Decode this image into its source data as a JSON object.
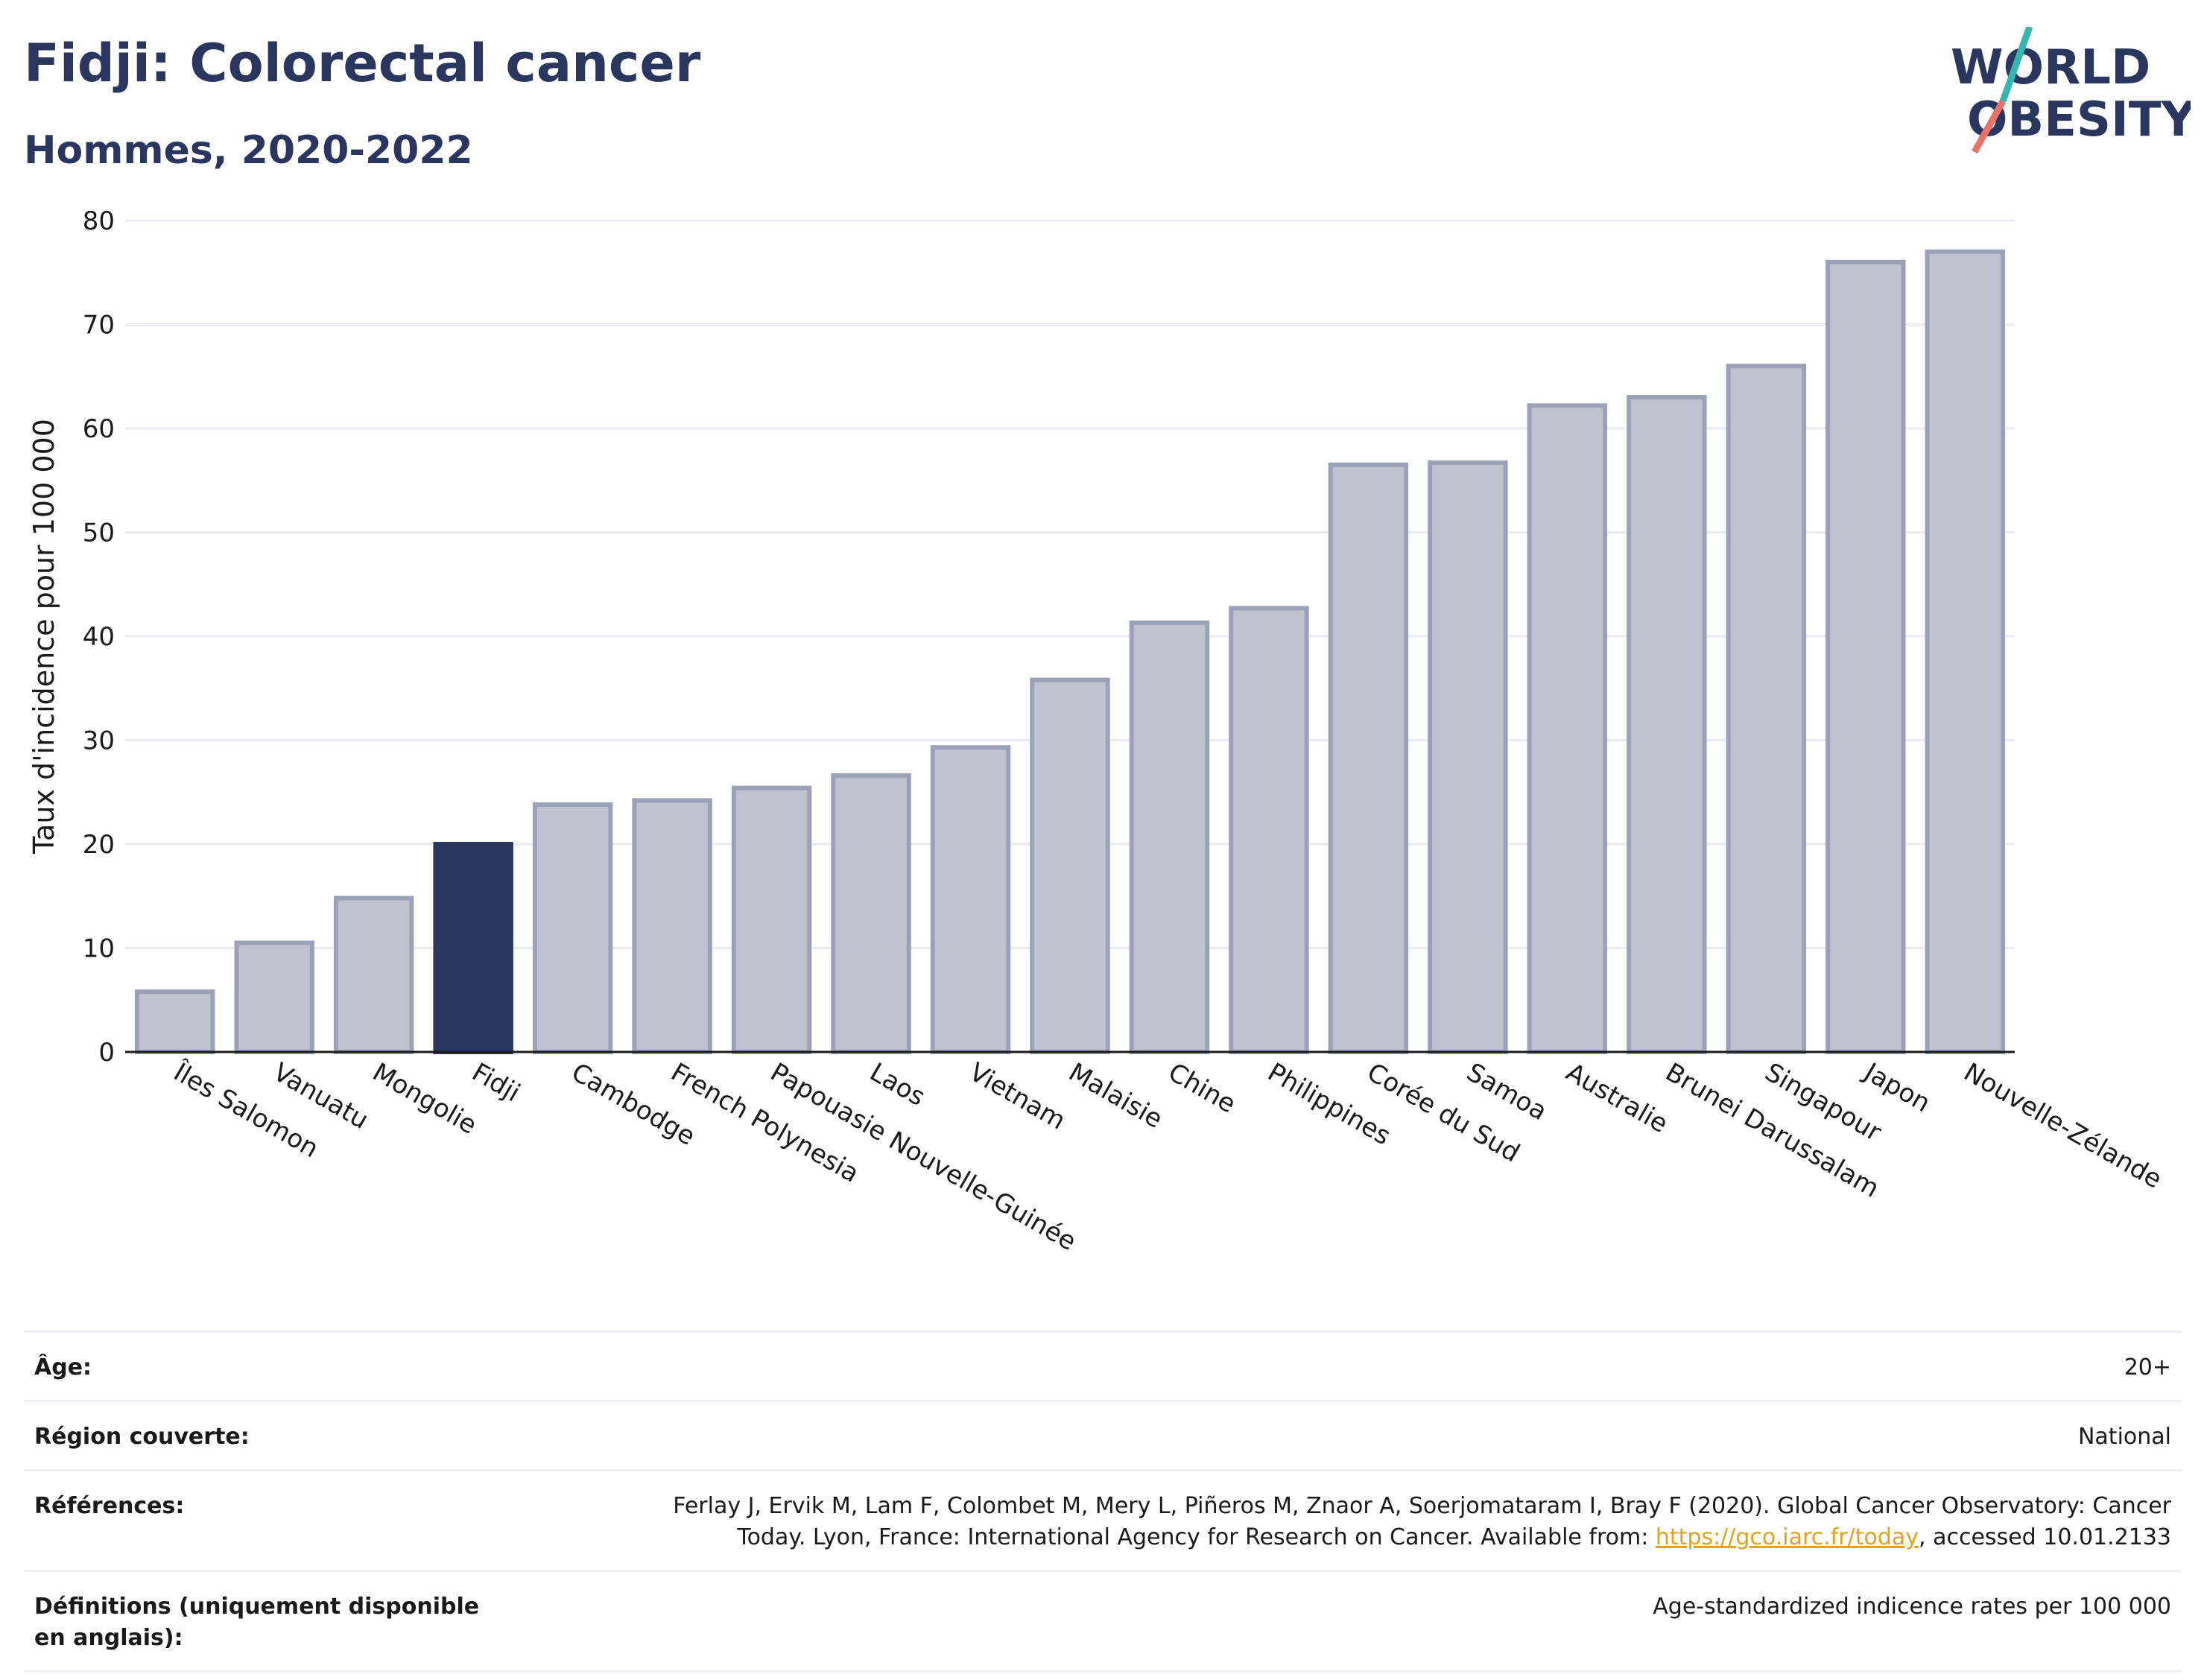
{
  "header": {
    "title": "Fidji: Colorectal cancer",
    "subtitle": "Hommes, 2020-2022"
  },
  "logo": {
    "line1": "WORLD",
    "line2": "OBESITY",
    "colors": {
      "text": "#2b365e",
      "slash_top": "#35b7b0",
      "slash_bottom": "#e8736b"
    }
  },
  "chart_data": {
    "type": "bar",
    "ylabel": "Taux d'incidence pour 100 000",
    "xlabel": "",
    "ylim": [
      0,
      80
    ],
    "yticks": [
      0,
      10,
      20,
      30,
      40,
      50,
      60,
      70,
      80
    ],
    "grid": true,
    "highlight_category": "Fidji",
    "colors": {
      "bar": "#bfc3d0",
      "bar_border": "#9aa1b8",
      "highlight": "#2b365e"
    },
    "categories": [
      "Îles Salomon",
      "Vanuatu",
      "Mongolie",
      "Fidji",
      "Cambodge",
      "French Polynesia",
      "Papouasie Nouvelle-Guinée",
      "Laos",
      "Vietnam",
      "Malaisie",
      "Chine",
      "Philippines",
      "Corée du Sud",
      "Samoa",
      "Australie",
      "Brunei Darussalam",
      "Singapour",
      "Japon",
      "Nouvelle-Zélande"
    ],
    "values": [
      5.8,
      10.5,
      14.8,
      20.0,
      23.8,
      24.2,
      25.4,
      26.6,
      29.3,
      35.8,
      41.3,
      42.7,
      56.5,
      56.7,
      62.2,
      63.0,
      66.0,
      76.0,
      77.0
    ]
  },
  "meta": {
    "rows": [
      {
        "key": "Âge:",
        "value": "20+"
      },
      {
        "key": "Région couverte:",
        "value": "National"
      },
      {
        "key": "Références:",
        "value_before": "Ferlay J, Ervik M, Lam F, Colombet M, Mery L, Piñeros M, Znaor A, Soerjomataram I, Bray F (2020). Global Cancer Observatory: Cancer Today. Lyon, France: International Agency for Research on Cancer. Available from: ",
        "link": "https://gco.iarc.fr/today",
        "value_after": ", accessed 10.01.2133"
      },
      {
        "key": "Définitions (uniquement disponible en anglais):",
        "value": "Age-standardized indicence rates per 100 000"
      }
    ]
  }
}
